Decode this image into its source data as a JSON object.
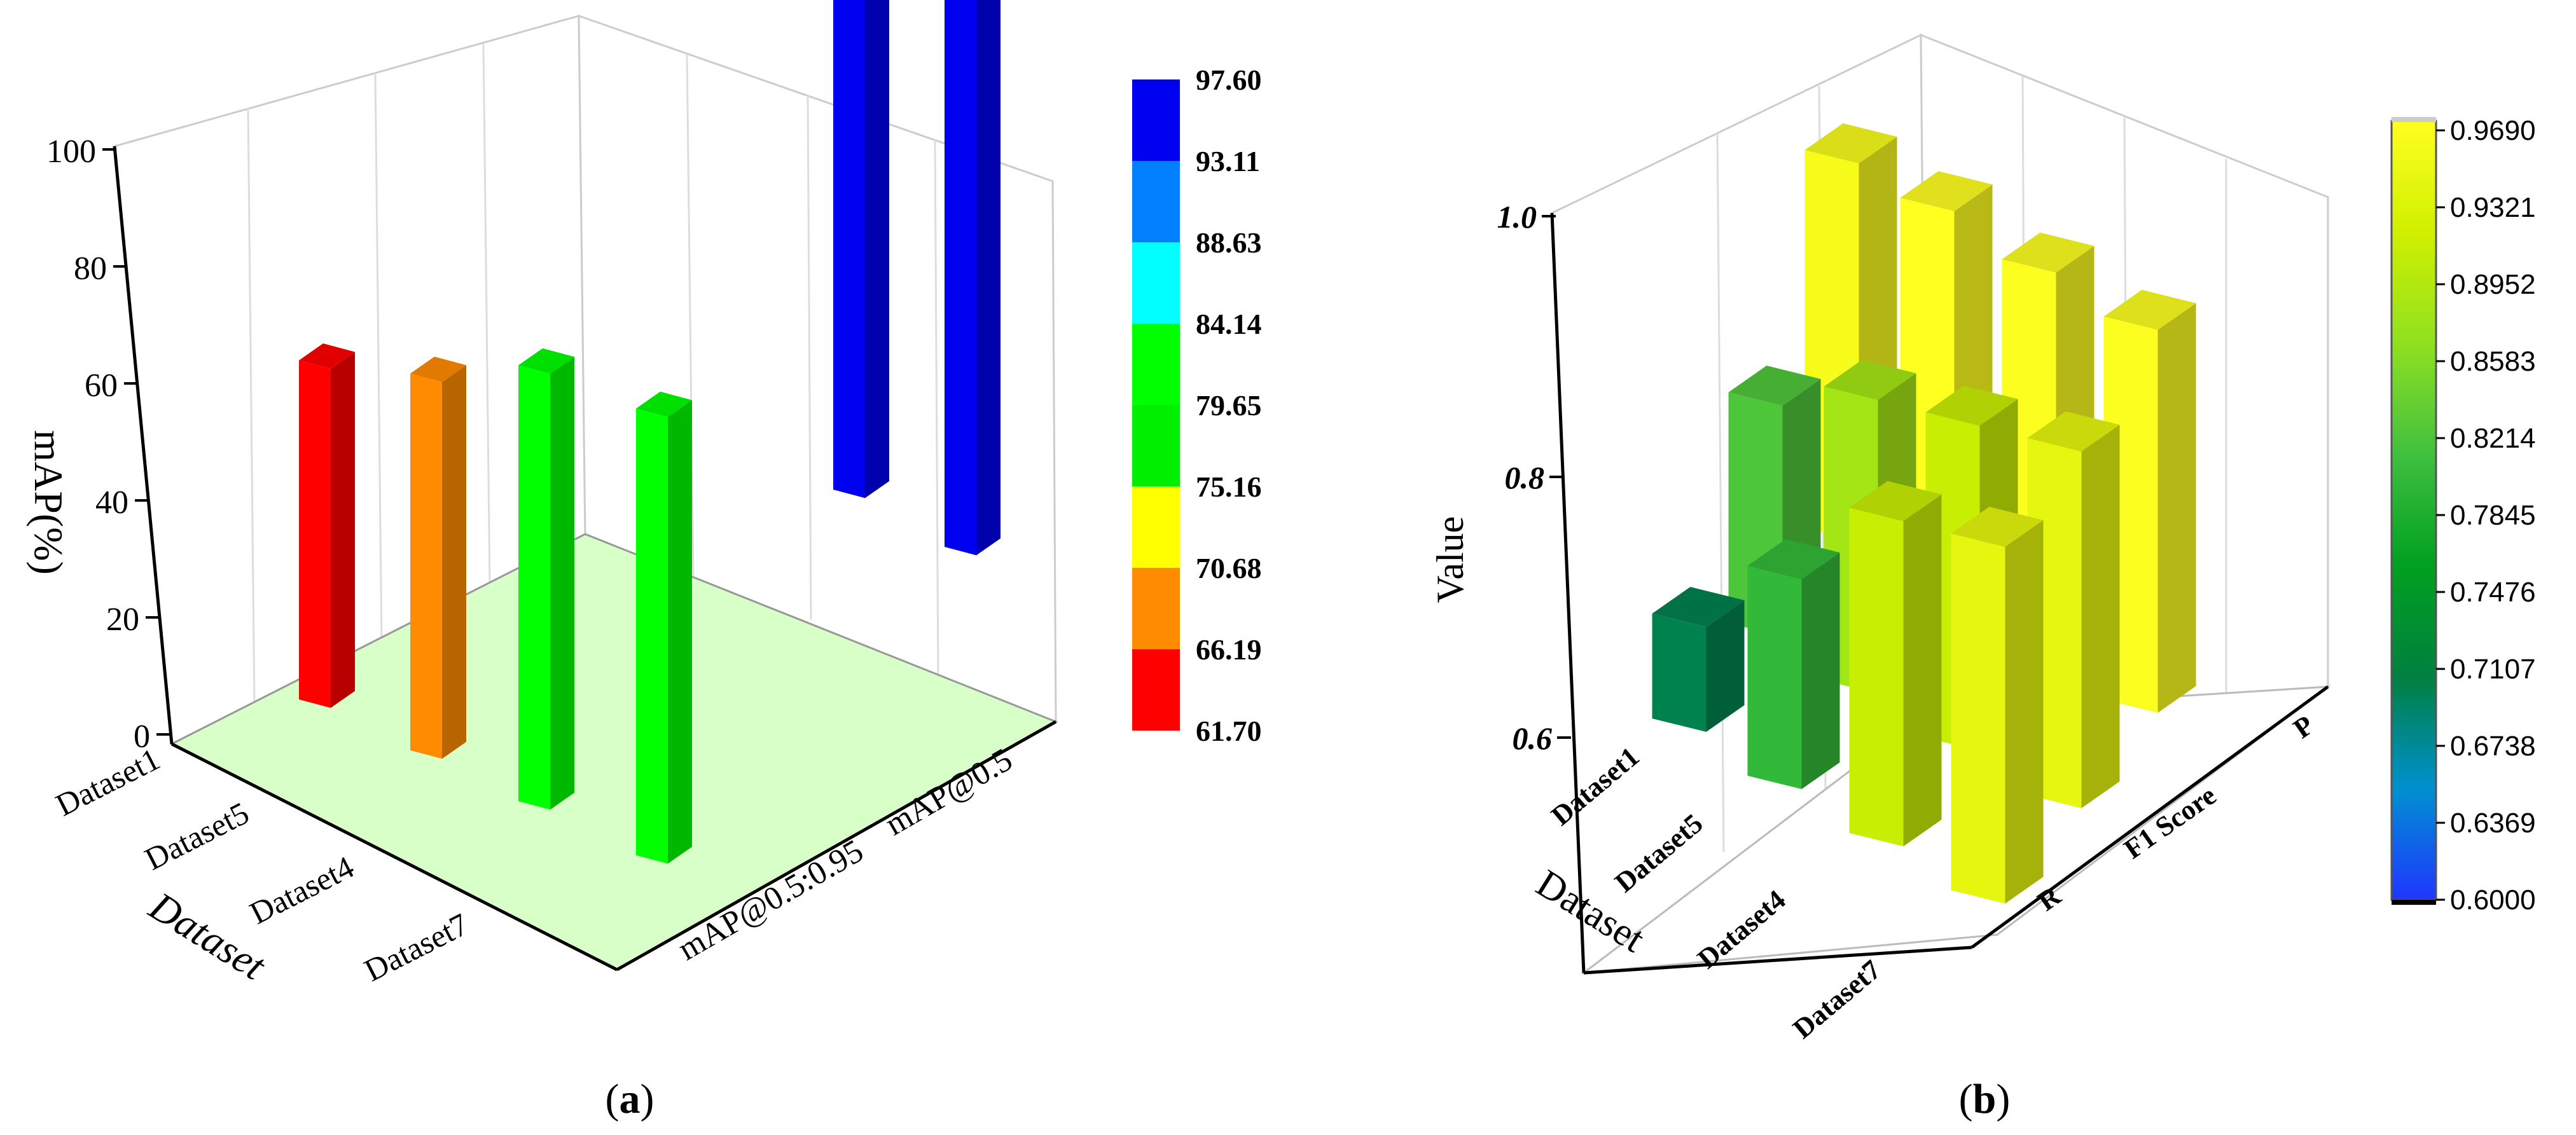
{
  "panels": [
    {
      "id": "a",
      "label_open": "(",
      "label_letter": "a",
      "label_close": ")",
      "zlabel": "mAP(%)",
      "xlabel": "Dataset",
      "z_ticks": [
        "0",
        "20",
        "40",
        "60",
        "80",
        "100"
      ],
      "colorbar_labels": [
        "97.60",
        "93.11",
        "88.63",
        "84.14",
        "79.65",
        "75.16",
        "70.68",
        "66.19",
        "61.70"
      ],
      "colorbar_colors": [
        "#0000f0",
        "#0080ff",
        "#00ffff",
        "#00ff00",
        "#00ef00",
        "#ffff00",
        "#ff8c00",
        "#ff0000"
      ],
      "floor_color": "#d9ffc9"
    },
    {
      "id": "b",
      "label_open": "(",
      "label_letter": "b",
      "label_close": ")",
      "zlabel": "Value",
      "xlabel": "Dataset",
      "z_ticks": [
        "0.6",
        "0.8",
        "1.0"
      ],
      "colorbar_labels": [
        "0.9690",
        "0.9321",
        "0.8952",
        "0.8583",
        "0.8214",
        "0.7845",
        "0.7476",
        "0.7107",
        "0.6738",
        "0.6369",
        "0.6000"
      ]
    }
  ],
  "chart_data": [
    {
      "type": "bar",
      "subtype": "3d-bar",
      "categories": [
        "Dataset1",
        "Dataset5",
        "Dataset4",
        "Dataset7"
      ],
      "series": [
        {
          "name": "mAP@0.5",
          "values": [
            null,
            null,
            96.5,
            97.6
          ]
        },
        {
          "name": "mAP@0.5:0.95",
          "values": [
            63.0,
            70.0,
            81.0,
            83.0
          ]
        }
      ],
      "zlabel": "mAP(%)",
      "xlabel": "Dataset",
      "zlim": [
        0,
        100
      ]
    },
    {
      "type": "bar",
      "subtype": "3d-bar",
      "categories": [
        "Dataset1",
        "Dataset5",
        "Dataset4",
        "Dataset7"
      ],
      "series": [
        {
          "name": "R",
          "values": [
            0.7,
            0.8,
            0.91,
            0.94
          ]
        },
        {
          "name": "F1 Score",
          "values": [
            0.82,
            0.88,
            0.91,
            0.94
          ]
        },
        {
          "name": "P",
          "values": [
            0.96,
            0.969,
            0.965,
            0.965
          ]
        }
      ],
      "zlabel": "Value",
      "xlabel": "Dataset",
      "zlim": [
        0.6,
        1.0
      ]
    }
  ]
}
